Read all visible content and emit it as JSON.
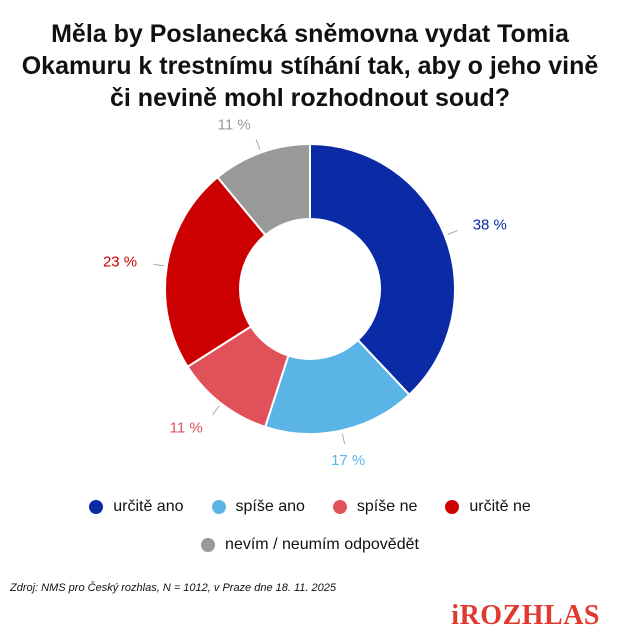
{
  "chart_data": {
    "type": "pie",
    "variant": "donut",
    "title": "Měla by Poslanecká sněmovna vydat Tomia\nOkamuru k trestnímu stíhání tak, aby o jeho vině\nči nevině mohl rozhodnout soud?",
    "slices": [
      {
        "name": "určitě ano",
        "value": 38,
        "label": "38 %",
        "color": "#0a2aa6"
      },
      {
        "name": "spíše ano",
        "value": 17,
        "label": "17 %",
        "color": "#5ab4e5"
      },
      {
        "name": "spíše ne",
        "value": 11,
        "label": "11 %",
        "color": "#e0515a"
      },
      {
        "name": "určitě ne",
        "value": 23,
        "label": "23 %",
        "color": "#cc0000"
      },
      {
        "name": "nevím / neumím odpovědět",
        "value": 11,
        "label": "11 %",
        "color": "#999999"
      }
    ],
    "legend_position": "bottom"
  },
  "source": "Zdroj: NMS pro Český rozhlas, N = 1012, v Praze dne 18. 11. 2025",
  "brand": "iROZHLAS"
}
